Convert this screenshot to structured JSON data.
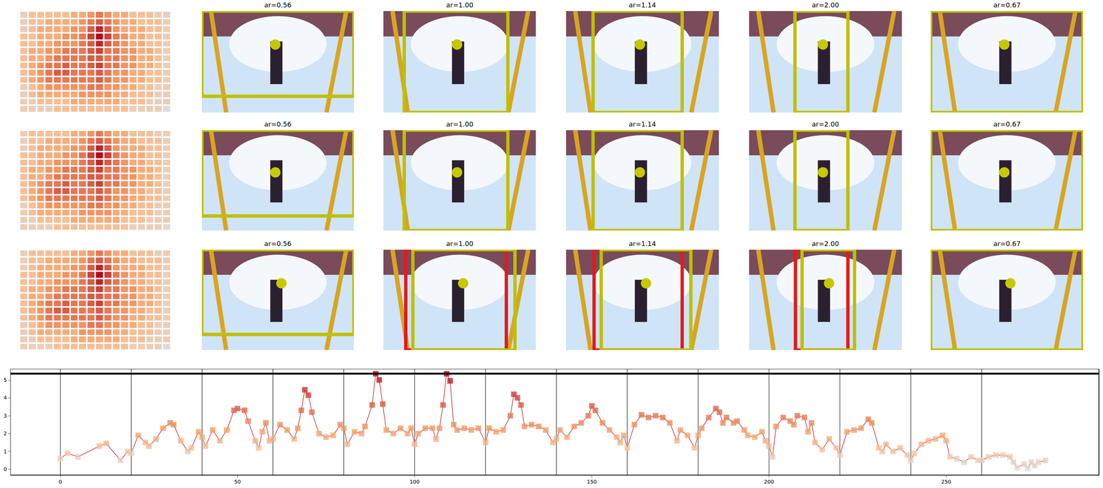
{
  "heatmap": {
    "type": "heatmap",
    "color": "Reds",
    "cells": [
      [
        1,
        2,
        2,
        2,
        2,
        2,
        3,
        3,
        4,
        5,
        4,
        3,
        3,
        2,
        2,
        2,
        1,
        1
      ],
      [
        1,
        2,
        2,
        3,
        3,
        3,
        3,
        4,
        5,
        6,
        5,
        4,
        3,
        3,
        2,
        2,
        2,
        1
      ],
      [
        1,
        2,
        3,
        3,
        3,
        3,
        4,
        4,
        6,
        8,
        6,
        4,
        3,
        3,
        3,
        2,
        2,
        1
      ],
      [
        2,
        2,
        3,
        3,
        3,
        4,
        4,
        5,
        7,
        9,
        7,
        5,
        4,
        3,
        3,
        2,
        2,
        1
      ],
      [
        2,
        2,
        3,
        3,
        4,
        4,
        4,
        5,
        6,
        8,
        6,
        5,
        4,
        3,
        3,
        2,
        2,
        1
      ],
      [
        2,
        3,
        3,
        4,
        4,
        5,
        5,
        5,
        6,
        7,
        5,
        5,
        4,
        4,
        3,
        3,
        2,
        1
      ],
      [
        2,
        3,
        3,
        4,
        5,
        5,
        5,
        5,
        6,
        6,
        5,
        5,
        4,
        4,
        3,
        3,
        2,
        1
      ],
      [
        2,
        3,
        4,
        5,
        5,
        6,
        5,
        5,
        6,
        7,
        5,
        5,
        4,
        4,
        3,
        3,
        2,
        1
      ],
      [
        2,
        3,
        4,
        5,
        6,
        6,
        5,
        5,
        5,
        6,
        5,
        4,
        4,
        3,
        3,
        2,
        2,
        1
      ],
      [
        2,
        3,
        4,
        5,
        5,
        5,
        5,
        5,
        5,
        6,
        5,
        4,
        4,
        3,
        3,
        2,
        2,
        1
      ],
      [
        1,
        2,
        3,
        4,
        4,
        4,
        4,
        4,
        5,
        5,
        4,
        4,
        3,
        3,
        2,
        2,
        1,
        1
      ],
      [
        1,
        2,
        3,
        3,
        3,
        3,
        3,
        4,
        4,
        4,
        4,
        3,
        3,
        2,
        2,
        2,
        1,
        1
      ],
      [
        1,
        1,
        2,
        2,
        2,
        2,
        3,
        3,
        3,
        3,
        3,
        3,
        2,
        2,
        2,
        1,
        1,
        1
      ],
      [
        1,
        1,
        1,
        1,
        2,
        2,
        2,
        2,
        2,
        2,
        2,
        2,
        2,
        1,
        1,
        1,
        1,
        0
      ]
    ],
    "tick_labels": false
  },
  "image_size": [
    300,
    200
  ],
  "rows": [
    {
      "panels": [
        {
          "title": "ar=0.56",
          "point": [
            145,
            66
          ],
          "point_color": "#c8c800",
          "boxes": [
            {
              "color": "#bfbf00",
              "x0": 0,
              "y0": 0,
              "x1": 300,
              "y1": 168
            }
          ]
        },
        {
          "title": "ar=1.00",
          "point": [
            145,
            66
          ],
          "point_color": "#c8c800",
          "boxes": [
            {
              "color": "#bfbf00",
              "x0": 41,
              "y0": 0,
              "x1": 245,
              "y1": 200
            }
          ]
        },
        {
          "title": "ar=1.14",
          "point": [
            145,
            66
          ],
          "point_color": "#c8c800",
          "boxes": [
            {
              "color": "#bfbf00",
              "x0": 53,
              "y0": 0,
              "x1": 228,
              "y1": 200
            }
          ]
        },
        {
          "title": "ar=2.00",
          "point": [
            145,
            66
          ],
          "point_color": "#c8c800",
          "boxes": [
            {
              "color": "#bfbf00",
              "x0": 90,
              "y0": 0,
              "x1": 194,
              "y1": 200
            }
          ]
        },
        {
          "title": "ar=0.67",
          "point": [
            145,
            66
          ],
          "point_color": "#c8c800",
          "boxes": [
            {
              "color": "#bfbf00",
              "x0": 0,
              "y0": 0,
              "x1": 300,
              "y1": 200
            }
          ]
        }
      ]
    },
    {
      "panels": [
        {
          "title": "ar=0.56",
          "point": [
            145,
            84
          ],
          "point_color": "#c8c800",
          "boxes": [
            {
              "color": "#bfbf00",
              "x0": 0,
              "y0": 0,
              "x1": 300,
              "y1": 171
            }
          ]
        },
        {
          "title": "ar=1.00",
          "point": [
            145,
            84
          ],
          "point_color": "#c8c800",
          "boxes": [
            {
              "color": "#bfbf00",
              "x0": 41,
              "y0": 0,
              "x1": 245,
              "y1": 200
            }
          ]
        },
        {
          "title": "ar=1.14",
          "point": [
            145,
            84
          ],
          "point_color": "#c8c800",
          "boxes": [
            {
              "color": "#bfbf00",
              "x0": 53,
              "y0": 0,
              "x1": 228,
              "y1": 200
            }
          ]
        },
        {
          "title": "ar=2.00",
          "point": [
            145,
            84
          ],
          "point_color": "#c8c800",
          "boxes": [
            {
              "color": "#bfbf00",
              "x0": 90,
              "y0": 0,
              "x1": 194,
              "y1": 200
            }
          ]
        },
        {
          "title": "ar=0.67",
          "point": [
            145,
            84
          ],
          "point_color": "#c8c800",
          "boxes": [
            {
              "color": "#bfbf00",
              "x0": 0,
              "y0": 0,
              "x1": 300,
              "y1": 200
            }
          ]
        }
      ]
    },
    {
      "panels": [
        {
          "title": "ar=0.56",
          "point": [
            157,
            67
          ],
          "point_color": "#c8c800",
          "boxes": [
            {
              "color": "#bfbf00",
              "x0": 0,
              "y0": 0,
              "x1": 300,
              "y1": 169
            }
          ]
        },
        {
          "title": "ar=1.00",
          "point": [
            157,
            67
          ],
          "point_color": "#c8c800",
          "boxes": [
            {
              "color": "#e31a1c",
              "x0": 44,
              "y0": 0,
              "x1": 242,
              "y1": 200
            },
            {
              "color": "#bfbf00",
              "x0": 58,
              "y0": 0,
              "x1": 259,
              "y1": 200
            }
          ]
        },
        {
          "title": "ar=1.14",
          "point": [
            157,
            67
          ],
          "point_color": "#c8c800",
          "boxes": [
            {
              "color": "#e31a1c",
              "x0": 55,
              "y0": 0,
              "x1": 228,
              "y1": 200
            },
            {
              "color": "#bfbf00",
              "x0": 69,
              "y0": 0,
              "x1": 245,
              "y1": 200
            }
          ]
        },
        {
          "title": "ar=2.00",
          "point": [
            157,
            67
          ],
          "point_color": "#c8c800",
          "boxes": [
            {
              "color": "#e31a1c",
              "x0": 91,
              "y0": 0,
              "x1": 194,
              "y1": 200
            },
            {
              "color": "#bfbf00",
              "x0": 104,
              "y0": 0,
              "x1": 207,
              "y1": 200
            }
          ]
        },
        {
          "title": "ar=0.67",
          "point": [
            157,
            67
          ],
          "point_color": "#c8c800",
          "boxes": [
            {
              "color": "#bfbf00",
              "x0": 0,
              "y0": 0,
              "x1": 300,
              "y1": 200
            }
          ]
        }
      ]
    }
  ],
  "chart_data": {
    "type": "line",
    "color": "Reds",
    "marker": "square",
    "line_style": "solid",
    "x": [
      0,
      2,
      5,
      11,
      13,
      17,
      19,
      20,
      22,
      24,
      25,
      27,
      29,
      31,
      32,
      34,
      36,
      37,
      39,
      40,
      41,
      43,
      45,
      47,
      49,
      50,
      52,
      53,
      55,
      56,
      57,
      58,
      59,
      60,
      62,
      64,
      66,
      67,
      68,
      69,
      70,
      71,
      73,
      75,
      77,
      79,
      80,
      81,
      83,
      85,
      86,
      88,
      89,
      90,
      91,
      92,
      94,
      96,
      98,
      99,
      100,
      101,
      103,
      105,
      106,
      107,
      108,
      109,
      110,
      111,
      112,
      114,
      116,
      118,
      120,
      121,
      123,
      125,
      127,
      128,
      129,
      130,
      131,
      133,
      135,
      137,
      139,
      140,
      141,
      143,
      145,
      147,
      149,
      150,
      151,
      153,
      155,
      157,
      158,
      159,
      160,
      162,
      164,
      166,
      168,
      170,
      172,
      174,
      175,
      177,
      179,
      180,
      181,
      183,
      185,
      186,
      187,
      188,
      190,
      191,
      193,
      194,
      196,
      198,
      199,
      200,
      201,
      202,
      204,
      206,
      207,
      208,
      210,
      211,
      212,
      213,
      215,
      217,
      219,
      220,
      222,
      224,
      226,
      228,
      229,
      231,
      232,
      233,
      235,
      237,
      239,
      240,
      241,
      243,
      245,
      247,
      249,
      250,
      251,
      253,
      255,
      257,
      259,
      260,
      262,
      264,
      266,
      268,
      269,
      270,
      272,
      273,
      274,
      275,
      276,
      278
    ],
    "values": [
      0.6,
      0.9,
      0.7,
      1.3,
      1.45,
      0.5,
      1.0,
      0.9,
      1.9,
      1.5,
      1.3,
      1.7,
      2.3,
      2.6,
      2.5,
      1.6,
      1.0,
      1.2,
      2.1,
      1.8,
      1.3,
      2.2,
      1.6,
      2.2,
      3.3,
      3.4,
      3.3,
      2.7,
      1.6,
      1.2,
      2.1,
      2.6,
      1.6,
      1.7,
      2.5,
      2.2,
      1.7,
      2.3,
      3.3,
      4.45,
      4.15,
      3.2,
      2.0,
      1.8,
      1.9,
      2.5,
      2.3,
      1.4,
      2.1,
      2.0,
      2.4,
      3.6,
      5.35,
      5.0,
      3.65,
      2.2,
      2.0,
      2.3,
      2.0,
      2.3,
      1.4,
      2.0,
      2.3,
      2.3,
      1.7,
      2.3,
      3.6,
      5.35,
      4.95,
      2.5,
      2.2,
      2.3,
      2.2,
      2.3,
      1.5,
      2.3,
      2.1,
      2.2,
      3.0,
      4.2,
      4.0,
      3.6,
      2.4,
      2.5,
      2.4,
      2.2,
      1.5,
      1.7,
      2.2,
      1.8,
      2.4,
      2.6,
      3.0,
      3.55,
      3.3,
      2.6,
      2.2,
      1.8,
      1.5,
      1.9,
      1.2,
      2.5,
      3.05,
      2.9,
      3.0,
      2.9,
      2.6,
      1.6,
      2.2,
      1.9,
      1.2,
      1.9,
      2.3,
      2.9,
      3.4,
      3.2,
      2.6,
      2.9,
      2.6,
      2.7,
      2.2,
      1.9,
      1.8,
      2.1,
      1.6,
      1.3,
      0.7,
      2.4,
      2.9,
      2.7,
      2.5,
      3.0,
      2.9,
      2.1,
      2.6,
      1.5,
      1.1,
      1.7,
      1.2,
      0.8,
      2.1,
      2.2,
      2.3,
      2.8,
      2.6,
      1.2,
      1.0,
      1.4,
      1.0,
      1.2,
      0.8,
      0.5,
      0.9,
      1.4,
      1.6,
      1.7,
      1.9,
      1.6,
      0.7,
      0.6,
      0.4,
      0.7,
      0.5,
      0.5,
      0.7,
      0.8,
      0.8,
      0.7,
      0.4,
      0.1,
      0.3,
      0.05,
      0.4,
      0.2,
      0.4,
      0.5
    ],
    "xlim": [
      -14,
      293
    ],
    "ylim": [
      -0.3,
      5.6
    ],
    "xticks": [
      0,
      50,
      100,
      150,
      200,
      250
    ],
    "yticks": [
      0,
      1,
      2,
      3,
      4,
      5
    ],
    "vlines": [
      0,
      20,
      40,
      60,
      80,
      100,
      120,
      140,
      160,
      180,
      200,
      220,
      240,
      260
    ],
    "hline": 5.35,
    "grid": false
  }
}
